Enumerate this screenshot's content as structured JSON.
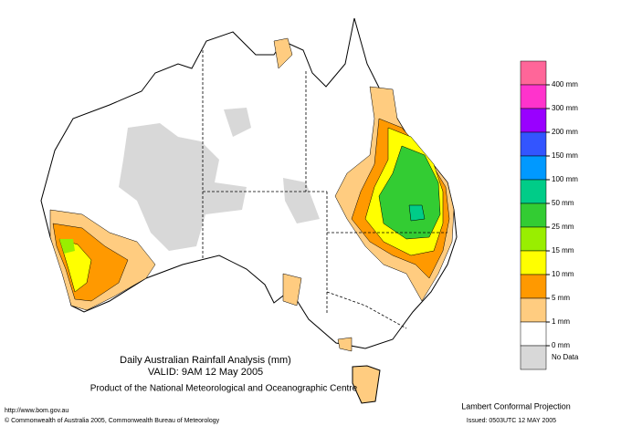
{
  "header": {
    "title": "Daily Australian Rainfall Analysis (mm)",
    "valid": "VALID: 9AM 12 May 2005",
    "product": "Product of the National Meteorological and Oceanographic Centre"
  },
  "footer": {
    "url": "http://www.bom.gov.au",
    "copyright": "© Commonwealth of Australia 2005, Commonwealth Bureau of Meteorology",
    "projection": "Lambert Conformal Projection",
    "issued": "Issued: 0503UTC 12 MAY 2005"
  },
  "legend": {
    "colors": [
      "#ff6699",
      "#ff33cc",
      "#9900ff",
      "#3355ff",
      "#0099ff",
      "#00cc88",
      "#33cc33",
      "#99ee00",
      "#ffff00",
      "#ff9900",
      "#ffcc80",
      "#ffffff",
      "#d8d8d8"
    ],
    "labels": [
      "400 mm",
      "300 mm",
      "200 mm",
      "150 mm",
      "100 mm",
      "50 mm",
      "25 mm",
      "15 mm",
      "10 mm",
      "5 mm",
      "1 mm",
      "0 mm"
    ],
    "no_data": "No Data"
  }
}
